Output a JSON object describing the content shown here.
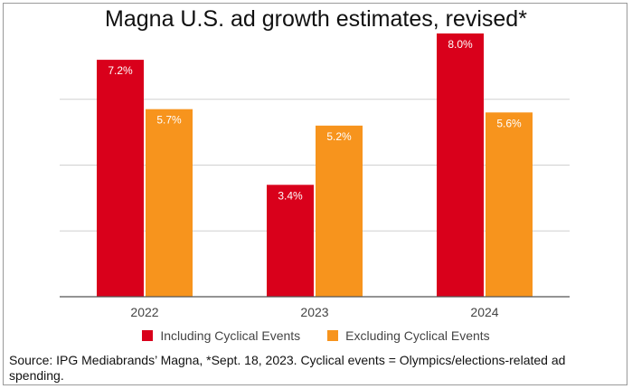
{
  "chart_data": {
    "type": "bar",
    "title": "Magna U.S. ad growth estimates, revised*",
    "categories": [
      "2022",
      "2023",
      "2024"
    ],
    "series": [
      {
        "name": "Including Cyclical Events",
        "color": "#d9001b",
        "values": [
          7.2,
          3.4,
          8.0
        ],
        "labels": [
          "7.2%",
          "3.4%",
          "8.0%"
        ]
      },
      {
        "name": "Excluding Cyclical Events",
        "color": "#f7941d",
        "values": [
          5.7,
          5.2,
          5.6
        ],
        "labels": [
          "5.7%",
          "5.2%",
          "5.6%"
        ]
      }
    ],
    "xlabel": "",
    "ylabel": "",
    "ylim": [
      0,
      8
    ],
    "grid": true,
    "legend": "bottom-center"
  },
  "source": "Source: IPG Mediabrands’ Magna, *Sept. 18, 2023. Cyclical events = Olympics/elections-related ad spending."
}
